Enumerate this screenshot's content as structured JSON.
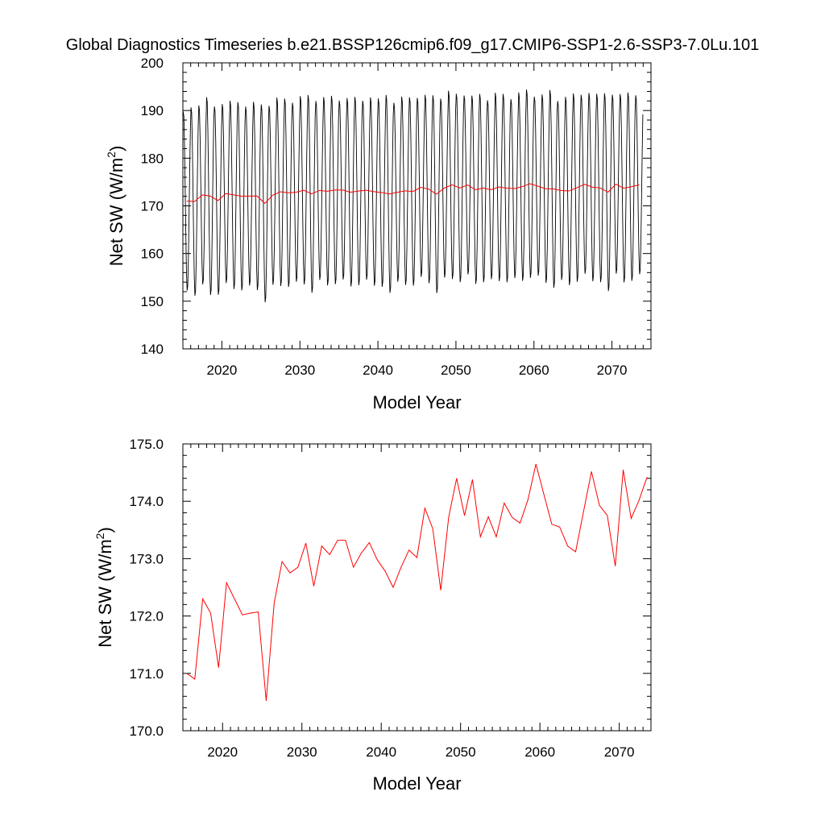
{
  "figure": {
    "title": "Global Diagnostics Timeseries b.e21.BSSP126cmip6.f09_g17.CMIP6-SSP1-2.6-SSP3-7.0Lu.101"
  },
  "chart_data": [
    {
      "type": "line",
      "title": "Global Diagnostics Timeseries b.e21.BSSP126cmip6.f09_g17.CMIP6-SSP1-2.6-SSP3-7.0Lu.101",
      "xlabel": "Model Year",
      "ylabel_main": "Net SW (W/m",
      "ylabel_sup": "2",
      "ylabel_close": ")",
      "xlim": [
        2015,
        2075
      ],
      "ylim": [
        140,
        200
      ],
      "xticks": [
        2020,
        2030,
        2040,
        2050,
        2060,
        2070
      ],
      "xtick_labels": [
        "2020",
        "2030",
        "2040",
        "2050",
        "2060",
        "2070"
      ],
      "yticks": [
        140,
        150,
        160,
        170,
        180,
        190,
        200
      ],
      "ytick_labels": [
        "140",
        "150",
        "160",
        "170",
        "180",
        "190",
        "200"
      ],
      "grid": false,
      "series": [
        {
          "color": "#000000",
          "monthly": true,
          "start_year": 2015,
          "annual_means": [
            171.0,
            170.9,
            172.3,
            172.05,
            171.1,
            172.58,
            172.3,
            172.02,
            172.05,
            172.07,
            170.52,
            172.22,
            172.95,
            172.75,
            172.85,
            173.27,
            172.52,
            173.22,
            173.07,
            173.32,
            173.32,
            172.85,
            173.1,
            173.28,
            172.98,
            172.78,
            172.5,
            172.85,
            173.15,
            173.02,
            173.88,
            173.52,
            172.45,
            173.72,
            174.4,
            173.75,
            174.38,
            173.38,
            173.73,
            173.38,
            173.97,
            173.72,
            173.62,
            174.03,
            174.65,
            174.12,
            173.6,
            173.55,
            173.22,
            173.12,
            173.82,
            174.52,
            173.93,
            173.75,
            172.87,
            174.55,
            173.7,
            174.02,
            174.42
          ],
          "amplitude": [
            19,
            20,
            19,
            21,
            20,
            19,
            20,
            20,
            19,
            20,
            21,
            19,
            20,
            20,
            19,
            20,
            21,
            19,
            20,
            20,
            19,
            20,
            20,
            19,
            20,
            20,
            21,
            19,
            20,
            20,
            19,
            20,
            21,
            19,
            20,
            20,
            19,
            20,
            20,
            19,
            20,
            20,
            19,
            20,
            20,
            19,
            20,
            21,
            19,
            20,
            20,
            19,
            20,
            20,
            21,
            19,
            20,
            20,
            19
          ]
        },
        {
          "color": "#ff0000",
          "start_year": 2015.5,
          "values": [
            171.0,
            170.9,
            172.3,
            172.05,
            171.1,
            172.58,
            172.3,
            172.02,
            172.05,
            172.07,
            170.52,
            172.22,
            172.95,
            172.75,
            172.85,
            173.27,
            172.52,
            173.22,
            173.07,
            173.32,
            173.32,
            172.85,
            173.1,
            173.28,
            172.98,
            172.78,
            172.5,
            172.85,
            173.15,
            173.02,
            173.88,
            173.52,
            172.45,
            173.72,
            174.4,
            173.75,
            174.38,
            173.38,
            173.73,
            173.38,
            173.97,
            173.72,
            173.62,
            174.03,
            174.65,
            174.12,
            173.6,
            173.55,
            173.22,
            173.12,
            173.82,
            174.52,
            173.93,
            173.75,
            172.87,
            174.55,
            173.7,
            174.02,
            174.42
          ]
        }
      ]
    },
    {
      "type": "line",
      "title": "",
      "xlabel": "Model Year",
      "ylabel_main": "Net SW (W/m",
      "ylabel_sup": "2",
      "ylabel_close": ")",
      "xlim": [
        2015,
        2074
      ],
      "ylim": [
        170,
        175
      ],
      "xticks": [
        2020,
        2030,
        2040,
        2050,
        2060,
        2070
      ],
      "xtick_labels": [
        "2020",
        "2030",
        "2040",
        "2050",
        "2060",
        "2070"
      ],
      "yticks": [
        170,
        171,
        172,
        173,
        174,
        175
      ],
      "ytick_labels": [
        "170.0",
        "171.0",
        "172.0",
        "173.0",
        "174.0",
        "175.0"
      ],
      "grid": false,
      "series": [
        {
          "color": "#ff0000",
          "start_year": 2015.5,
          "values": [
            171.0,
            170.9,
            172.3,
            172.05,
            171.1,
            172.58,
            172.3,
            172.02,
            172.05,
            172.07,
            170.52,
            172.22,
            172.95,
            172.75,
            172.85,
            173.27,
            172.52,
            173.22,
            173.07,
            173.32,
            173.32,
            172.85,
            173.1,
            173.28,
            172.98,
            172.78,
            172.5,
            172.85,
            173.15,
            173.02,
            173.88,
            173.52,
            172.45,
            173.72,
            174.4,
            173.75,
            174.38,
            173.38,
            173.73,
            173.38,
            173.97,
            173.72,
            173.62,
            174.03,
            174.65,
            174.12,
            173.6,
            173.55,
            173.22,
            173.12,
            173.82,
            174.52,
            173.93,
            173.75,
            172.87,
            174.55,
            173.7,
            174.02,
            174.42
          ]
        }
      ]
    }
  ]
}
